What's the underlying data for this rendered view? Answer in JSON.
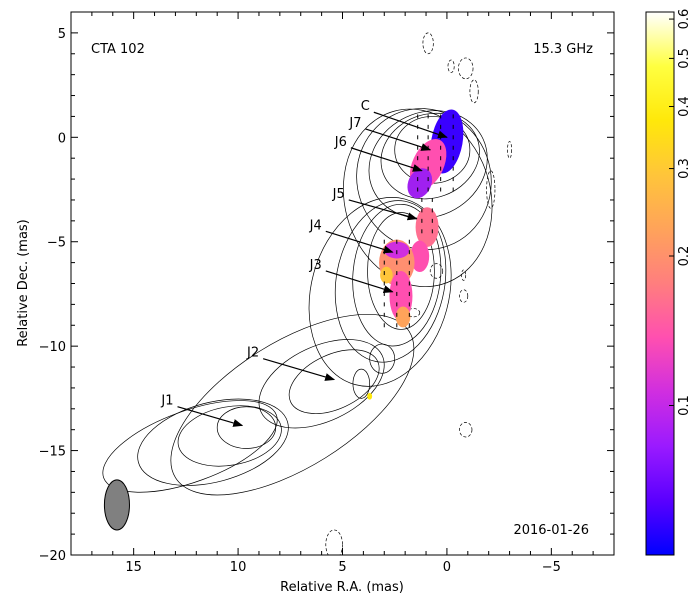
{
  "chart_data": {
    "type": "image",
    "source_name": "CTA 102",
    "frequency": "15.3 GHz",
    "date": "2016-01-26",
    "xlabel": "Relative R.A. (mas)",
    "ylabel": "Relative Dec. (mas)",
    "xlim": [
      18,
      -8
    ],
    "ylim": [
      -20,
      6
    ],
    "xticks": [
      15,
      10,
      5,
      0,
      -5
    ],
    "xtick_labels": [
      "15",
      "10",
      "5",
      "0",
      "−5"
    ],
    "yticks": [
      5,
      0,
      -5,
      -10,
      -15,
      -20
    ],
    "ytick_labels": [
      "5",
      "0",
      "−5",
      "−10",
      "−15",
      "−20"
    ],
    "colorbar": {
      "scale": "log",
      "range": [
        0.05,
        0.62
      ],
      "ticks": [
        0.1,
        0.2,
        0.3,
        0.4,
        0.5,
        0.6
      ],
      "tick_labels": [
        "0.1",
        "0.2",
        "0.3",
        "0.4",
        "0.5",
        "0.6"
      ],
      "colormap": [
        "#0000ff",
        "#5a00ff",
        "#9a1aff",
        "#d02ee0",
        "#ff4fb0",
        "#ff7e7e",
        "#ffa35a",
        "#ffc53a",
        "#ffe80a",
        "#ffff40",
        "#ffffff"
      ]
    },
    "components": [
      {
        "name": "C",
        "arrow_from": [
          3.5,
          1.2
        ],
        "arrow_to": [
          0.0,
          0.0
        ]
      },
      {
        "name": "J7",
        "arrow_from": [
          3.9,
          0.4
        ],
        "arrow_to": [
          0.8,
          -0.6
        ]
      },
      {
        "name": "J6",
        "arrow_from": [
          4.6,
          -0.5
        ],
        "arrow_to": [
          1.2,
          -1.6
        ]
      },
      {
        "name": "J5",
        "arrow_from": [
          4.7,
          -3.0
        ],
        "arrow_to": [
          1.45,
          -3.9
        ]
      },
      {
        "name": "J4",
        "arrow_from": [
          5.8,
          -4.5
        ],
        "arrow_to": [
          2.6,
          -5.5
        ]
      },
      {
        "name": "J3",
        "arrow_from": [
          5.8,
          -6.4
        ],
        "arrow_to": [
          2.6,
          -7.4
        ]
      },
      {
        "name": "J2",
        "arrow_from": [
          8.8,
          -10.6
        ],
        "arrow_to": [
          5.4,
          -11.6
        ]
      },
      {
        "name": "J1",
        "arrow_from": [
          12.9,
          -12.9
        ],
        "arrow_to": [
          9.8,
          -13.8
        ]
      }
    ],
    "beam": {
      "x": 15.8,
      "y": -17.6,
      "major": 1.2,
      "minor": 0.6,
      "pa_deg": 0
    }
  }
}
